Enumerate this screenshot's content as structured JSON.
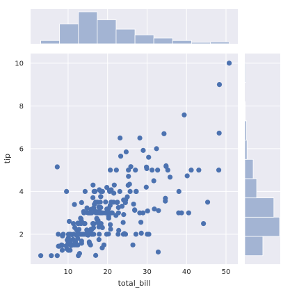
{
  "chart_data": {
    "type": "scatter",
    "title": "",
    "xlabel": "total_bill",
    "ylabel": "tip",
    "xlim": [
      0.5,
      53
    ],
    "ylim": [
      0.6,
      10.45
    ],
    "xticks": [
      10,
      20,
      30,
      40,
      50
    ],
    "yticks": [
      2,
      4,
      6,
      8,
      10
    ],
    "grid": true,
    "background": "#eaeaf2",
    "point_color": "#4c72b0",
    "hist_color": "#a3b4d3",
    "x": [
      16.99,
      10.34,
      21.01,
      23.68,
      24.59,
      25.29,
      8.77,
      26.88,
      15.04,
      14.78,
      10.27,
      35.26,
      15.42,
      18.43,
      14.83,
      21.58,
      10.33,
      16.29,
      16.97,
      20.65,
      17.92,
      20.29,
      15.77,
      39.42,
      19.82,
      17.81,
      13.37,
      12.69,
      21.7,
      19.65,
      9.55,
      18.35,
      15.06,
      20.69,
      17.78,
      24.06,
      16.31,
      16.93,
      18.69,
      31.27,
      16.04,
      17.46,
      13.94,
      9.68,
      30.4,
      18.29,
      22.23,
      32.4,
      28.55,
      18.04,
      12.54,
      10.29,
      34.81,
      9.94,
      25.56,
      19.49,
      38.01,
      26.41,
      11.24,
      48.27,
      20.29,
      13.81,
      11.02,
      18.29,
      17.59,
      20.08,
      16.45,
      3.07,
      20.23,
      15.01,
      12.02,
      17.07,
      26.86,
      25.28,
      14.73,
      10.51,
      17.92,
      27.2,
      22.76,
      17.29,
      19.44,
      16.66,
      10.07,
      32.68,
      15.98,
      34.83,
      13.03,
      18.28,
      24.71,
      21.16,
      28.97,
      22.49,
      5.75,
      16.32,
      22.75,
      40.17,
      27.28,
      12.03,
      21.01,
      12.46,
      11.35,
      15.38,
      44.3,
      22.42,
      20.92,
      15.36,
      20.49,
      25.21,
      18.24,
      14.31,
      14.0,
      7.25,
      38.07,
      23.95,
      25.71,
      17.31,
      29.93,
      10.65,
      12.43,
      24.08,
      11.69,
      13.42,
      14.26,
      15.95,
      12.48,
      29.8,
      8.52,
      14.52,
      11.38,
      22.82,
      19.08,
      20.27,
      11.17,
      12.26,
      18.26,
      8.51,
      10.33,
      14.15,
      16.0,
      13.16,
      17.47,
      34.3,
      41.19,
      27.05,
      16.43,
      8.35,
      18.64,
      11.87,
      9.78,
      7.51,
      14.07,
      13.13,
      17.26,
      24.55,
      19.77,
      29.85,
      48.17,
      25.0,
      13.39,
      16.49,
      21.5,
      12.66,
      16.21,
      13.81,
      17.51,
      24.52,
      20.76,
      31.71,
      10.59,
      10.63,
      50.81,
      15.81,
      7.25,
      31.85,
      16.82,
      32.9,
      17.89,
      14.48,
      9.6,
      34.63,
      34.65,
      23.33,
      45.35,
      23.17,
      40.55,
      20.69,
      20.9,
      30.46,
      18.15,
      23.1,
      15.69,
      19.81,
      28.44,
      15.48,
      16.58,
      7.56,
      10.34,
      43.11,
      13.0,
      13.51,
      18.71,
      12.74,
      13.0,
      16.4,
      20.53,
      16.47,
      26.59,
      38.73,
      24.27,
      12.76,
      30.06,
      25.89,
      48.33,
      13.27,
      28.17,
      12.9,
      28.15,
      11.59,
      7.74,
      30.14,
      12.16,
      13.42,
      8.58,
      15.98,
      13.42,
      16.27,
      10.09,
      20.45,
      13.28,
      22.12,
      24.01,
      15.69,
      11.61,
      10.77,
      15.53,
      10.07,
      12.6,
      32.83,
      35.83,
      29.03,
      27.18,
      22.67,
      17.82,
      18.78
    ],
    "y": [
      1.01,
      1.66,
      3.5,
      3.31,
      3.61,
      4.71,
      2.0,
      3.12,
      1.96,
      3.23,
      1.71,
      5.0,
      1.57,
      3.0,
      3.02,
      3.92,
      1.67,
      3.71,
      3.5,
      3.35,
      4.08,
      2.75,
      2.23,
      7.58,
      3.18,
      2.34,
      2.0,
      2.0,
      4.3,
      3.0,
      1.45,
      2.5,
      3.0,
      2.45,
      3.27,
      3.6,
      2.0,
      3.07,
      2.31,
      5.0,
      2.24,
      2.54,
      3.06,
      1.32,
      5.6,
      3.0,
      5.0,
      6.0,
      2.05,
      3.0,
      2.5,
      2.6,
      5.2,
      1.56,
      4.34,
      3.51,
      3.0,
      1.5,
      1.76,
      6.73,
      3.21,
      2.0,
      1.98,
      3.76,
      2.64,
      3.15,
      2.47,
      1.0,
      2.01,
      2.09,
      1.97,
      3.0,
      3.14,
      5.0,
      2.2,
      1.25,
      3.08,
      4.0,
      3.0,
      2.71,
      3.0,
      3.4,
      1.83,
      5.0,
      2.03,
      5.17,
      2.0,
      4.0,
      5.85,
      3.0,
      3.0,
      3.5,
      1.0,
      4.3,
      3.25,
      4.73,
      4.0,
      1.5,
      3.0,
      1.5,
      2.5,
      3.0,
      2.5,
      3.48,
      4.08,
      1.64,
      4.06,
      4.29,
      3.76,
      4.0,
      3.0,
      1.0,
      4.0,
      2.55,
      4.0,
      3.5,
      5.07,
      1.5,
      1.8,
      2.92,
      2.31,
      1.68,
      2.5,
      2.0,
      2.52,
      4.2,
      1.48,
      2.0,
      2.0,
      2.18,
      1.5,
      2.83,
      1.5,
      2.0,
      3.25,
      1.25,
      2.0,
      2.0,
      2.0,
      2.75,
      3.5,
      6.7,
      5.0,
      5.0,
      2.3,
      1.5,
      1.36,
      1.63,
      1.73,
      2.0,
      2.5,
      2.0,
      2.74,
      2.0,
      2.0,
      5.14,
      5.0,
      3.75,
      2.61,
      2.0,
      3.5,
      2.5,
      2.0,
      2.0,
      3.0,
      3.48,
      2.24,
      4.5,
      1.61,
      2.0,
      10.0,
      3.16,
      5.15,
      3.18,
      4.0,
      3.11,
      2.0,
      2.0,
      4.0,
      3.55,
      3.68,
      5.65,
      3.5,
      6.5,
      3.0,
      5.0,
      3.5,
      2.0,
      3.5,
      4.0,
      1.5,
      4.19,
      2.56,
      2.02,
      4.0,
      1.44,
      2.0,
      5.0,
      2.0,
      2.0,
      4.0,
      2.01,
      2.0,
      2.5,
      4.0,
      3.23,
      3.41,
      3.0,
      2.03,
      2.23,
      2.0,
      5.16,
      9.0,
      2.5,
      6.5,
      1.1,
      3.0,
      1.5,
      1.44,
      3.09,
      2.2,
      3.48,
      1.92,
      3.0,
      1.58,
      2.5,
      2.0,
      3.0,
      2.72,
      2.88,
      2.0,
      3.0,
      3.39,
      1.47,
      3.0,
      1.25,
      1.0,
      1.17,
      4.67,
      5.92,
      2.0,
      2.0,
      1.75,
      3.0
    ],
    "marginal_x": {
      "bins": [
        3.07,
        7.84,
        12.62,
        17.39,
        22.16,
        26.94,
        31.71,
        36.48,
        41.26,
        46.03,
        50.81
      ],
      "counts": [
        7,
        42,
        68,
        51,
        31,
        19,
        12,
        7,
        3,
        4
      ]
    },
    "marginal_y": {
      "bins": [
        1.0,
        1.9,
        2.8,
        3.7,
        4.6,
        5.5,
        6.4,
        7.3,
        8.2,
        9.1,
        10.0
      ],
      "counts": [
        41,
        79,
        66,
        27,
        19,
        5,
        4,
        1,
        0,
        2
      ]
    }
  }
}
